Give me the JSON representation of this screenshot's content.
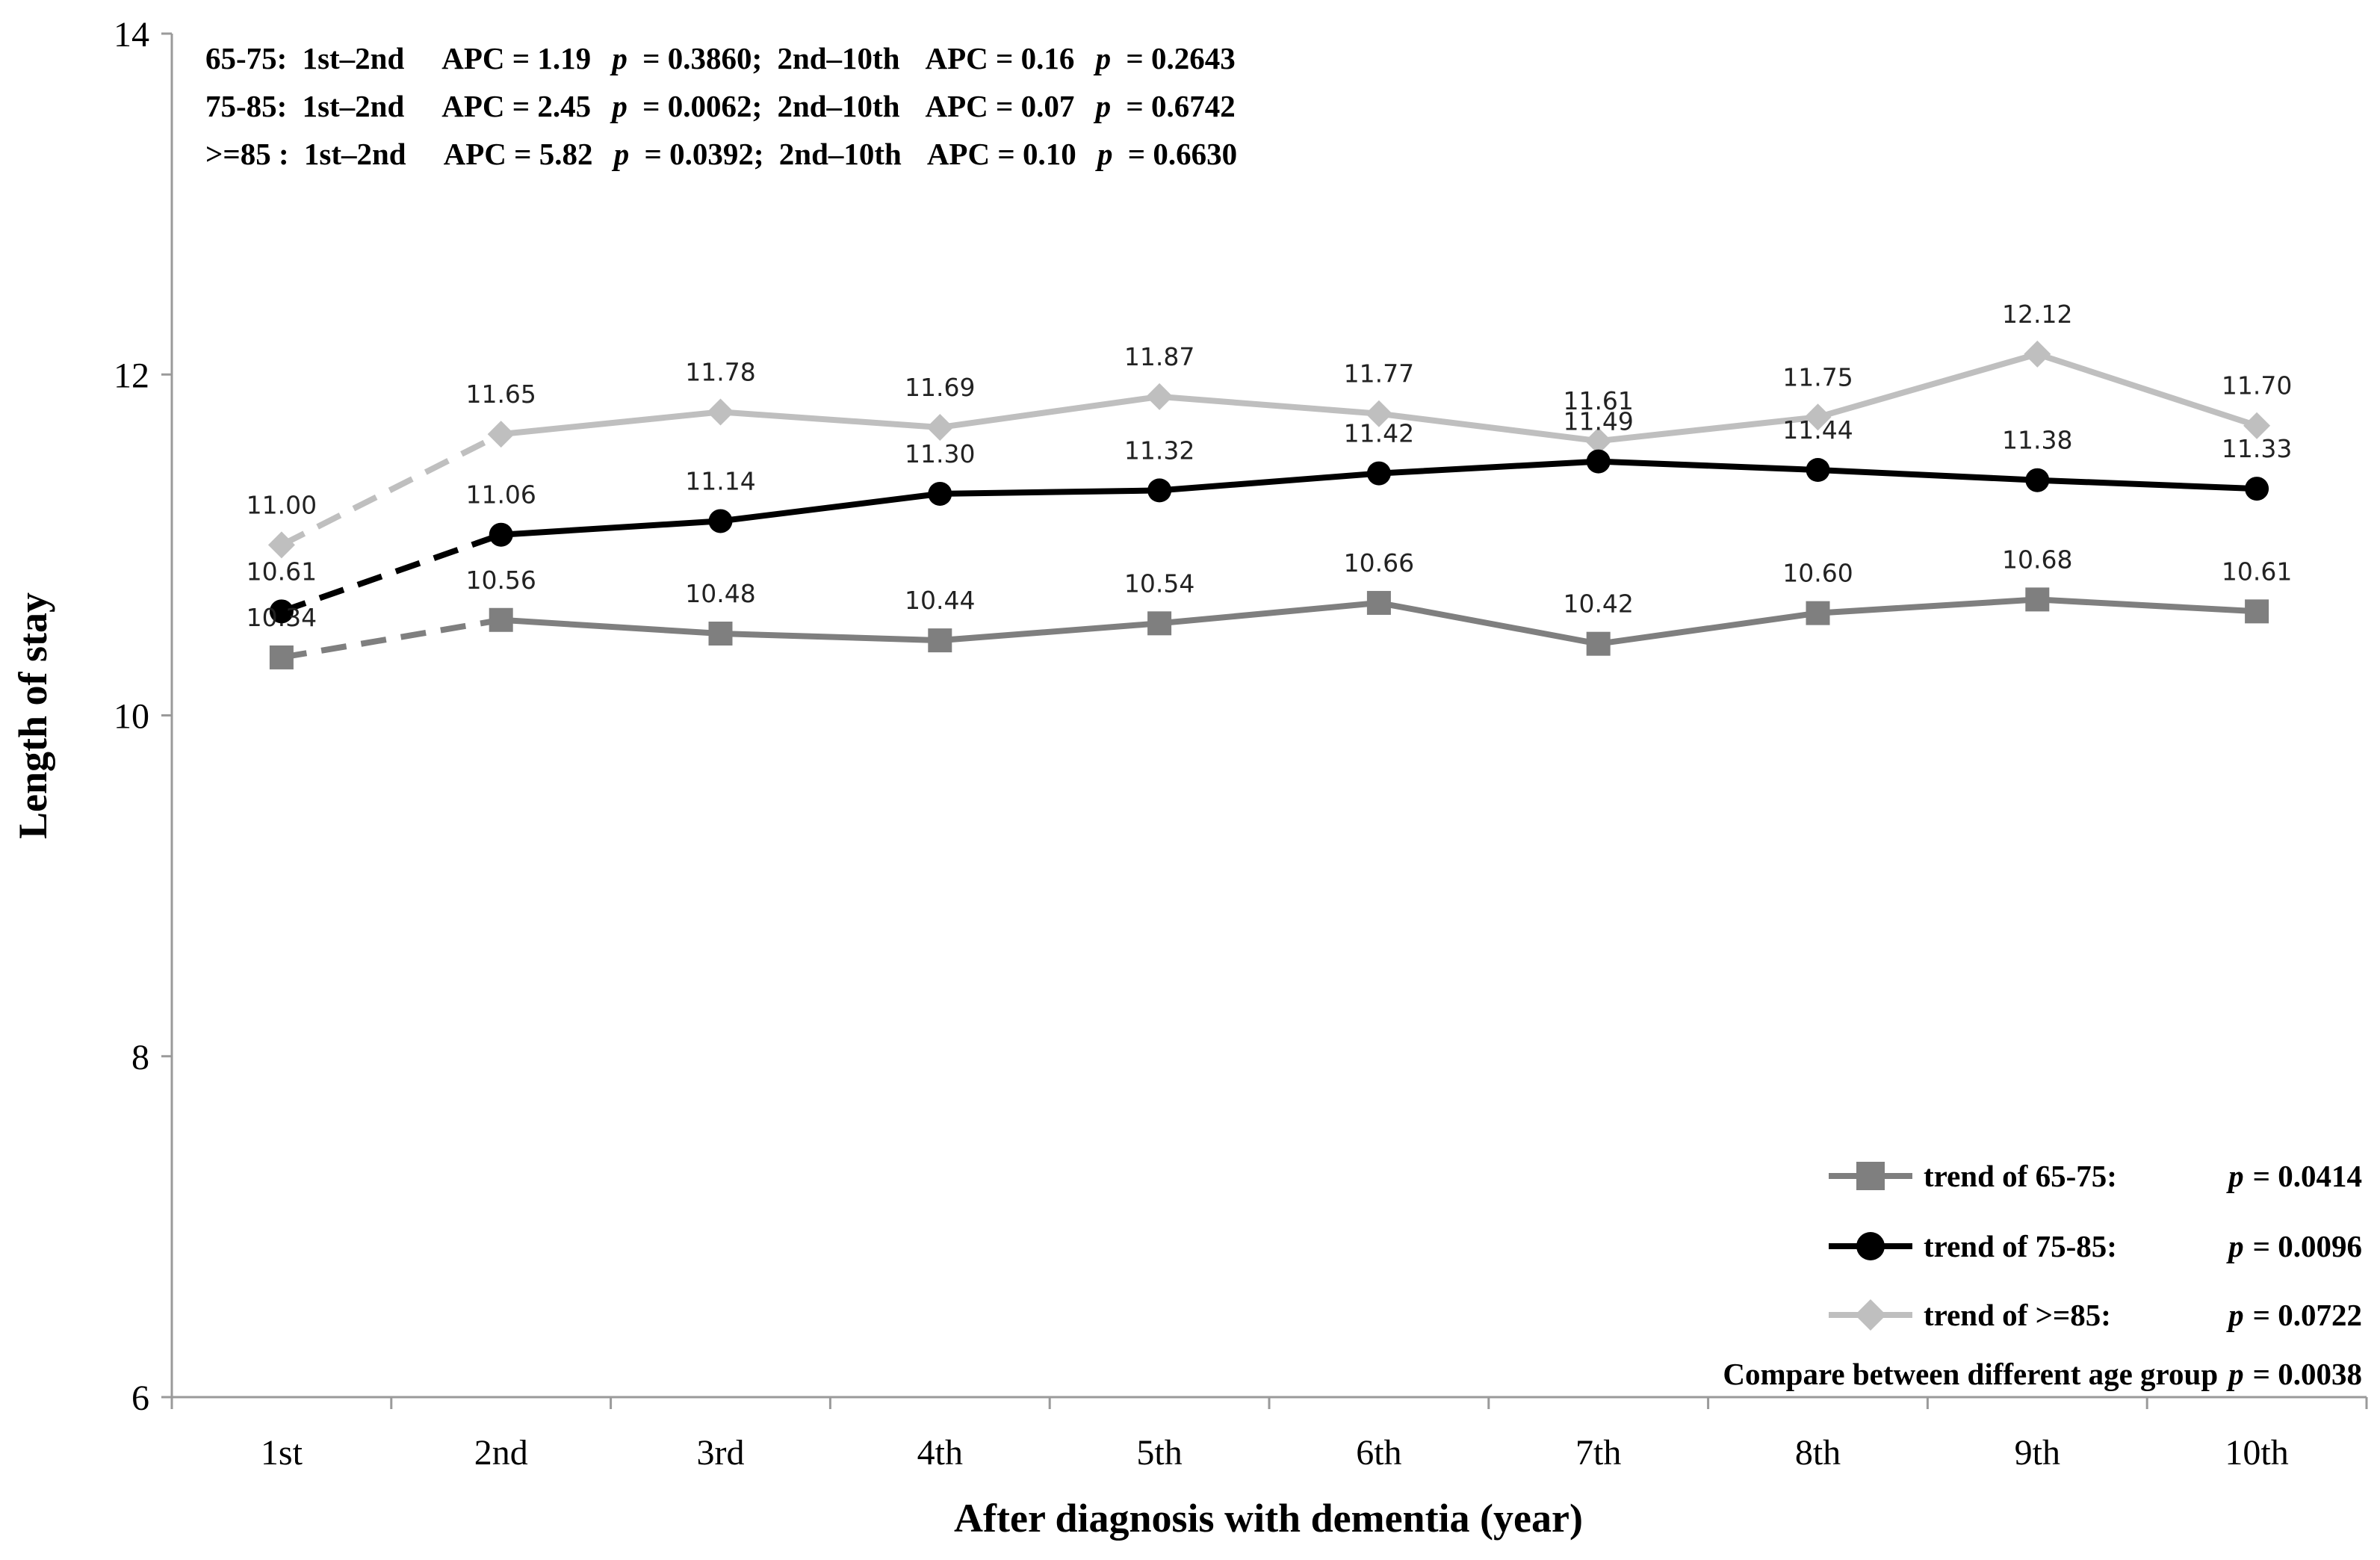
{
  "chart_data": {
    "type": "line",
    "title": "",
    "xlabel": "After diagnosis with dementia (year)",
    "ylabel": "Length of stay",
    "ylim": [
      6,
      14
    ],
    "yticks": [
      "6",
      "8",
      "10",
      "12",
      "14"
    ],
    "ytick_values": [
      6,
      8,
      10,
      12,
      14
    ],
    "categories": [
      "1st",
      "2nd",
      "3rd",
      "4th",
      "5th",
      "6th",
      "7th",
      "8th",
      "9th",
      "10th"
    ],
    "dashed_segment": "1st to 2nd",
    "series": [
      {
        "name": "65-75",
        "marker": "square",
        "color": "#7f7f7f",
        "values": [
          10.34,
          10.56,
          10.48,
          10.44,
          10.54,
          10.66,
          10.42,
          10.6,
          10.68,
          10.61
        ],
        "labels": [
          "10.34",
          "10.56",
          "10.48",
          "10.44",
          "10.54",
          "10.66",
          "10.42",
          "10.60",
          "10.68",
          "10.61"
        ]
      },
      {
        "name": "75-85",
        "marker": "circle",
        "color": "#000000",
        "values": [
          10.61,
          11.06,
          11.14,
          11.3,
          11.32,
          11.42,
          11.49,
          11.44,
          11.38,
          11.33
        ],
        "labels": [
          "10.61",
          "11.06",
          "11.14",
          "11.30",
          "11.32",
          "11.42",
          "11.49",
          "11.44",
          "11.38",
          "11.33"
        ]
      },
      {
        "name": ">=85",
        "marker": "diamond",
        "color": "#bfbfbf",
        "values": [
          11.0,
          11.65,
          11.78,
          11.69,
          11.87,
          11.77,
          11.61,
          11.75,
          12.12,
          11.7
        ],
        "labels": [
          "11.00",
          "11.65",
          "11.78",
          "11.69",
          "11.87",
          "11.77",
          "11.61",
          "11.75",
          "12.12",
          "11.70"
        ]
      }
    ],
    "annotations": [
      {
        "group": "65-75:",
        "seg1": "1st–2nd",
        "apc1": "APC = 1.19",
        "p_letter": "p",
        "p1": "= 0.3860;",
        "seg2": "2nd–10th",
        "apc2": "APC = 0.16",
        "p2": "= 0.2643"
      },
      {
        "group": "75-85:",
        "seg1": "1st–2nd",
        "apc1": "APC = 2.45",
        "p_letter": "p",
        "p1": "= 0.0062;",
        "seg2": "2nd–10th",
        "apc2": "APC = 0.07",
        "p2": "= 0.6742"
      },
      {
        "group": ">=85 :",
        "seg1": "1st–2nd",
        "apc1": "APC = 5.82",
        "p_letter": "p",
        "p1": "= 0.0392;",
        "seg2": "2nd–10th",
        "apc2": "APC = 0.10",
        "p2": "= 0.6630"
      }
    ],
    "legend": {
      "position": "bottom-right",
      "entries": [
        {
          "label": "trend of 65-75:",
          "p_letter": "p",
          "p_value": "= 0.0414"
        },
        {
          "label": "trend of 75-85:",
          "p_letter": "p",
          "p_value": "= 0.0096"
        },
        {
          "label": "trend of >=85:",
          "p_letter": "p",
          "p_value": "= 0.0722"
        }
      ],
      "compare_text": "Compare between different age group",
      "compare_p_letter": "p",
      "compare_p_value": "= 0.0038"
    }
  }
}
